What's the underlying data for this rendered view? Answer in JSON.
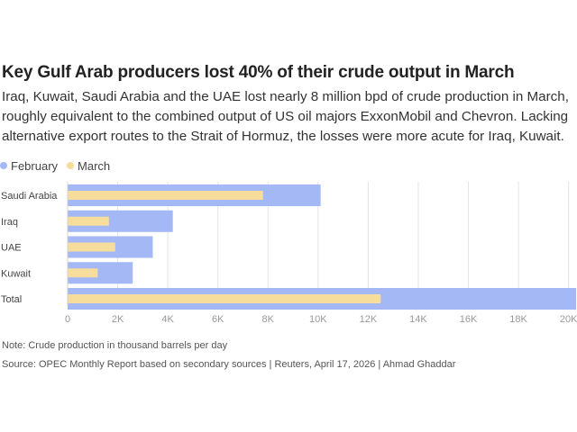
{
  "header": {
    "title": "Key Gulf Arab producers lost 40% of their crude output in March",
    "subtitle": "Iraq, Kuwait, Saudi Arabia and the UAE lost nearly 8 million bpd of crude production in March, roughly equivalent to the combined output of US oil majors ExxonMobil and Chevron. Lacking alternative export routes to the Strait of Hormuz, the losses were more acute for Iraq, Kuwait."
  },
  "legend": {
    "february": "February",
    "march": "March"
  },
  "colors": {
    "february": "#a3b8f5",
    "march": "#f7dd9b",
    "grid": "#e4e4e4",
    "axis_text": "#999999",
    "label_text": "#444444"
  },
  "footer": {
    "note": "Note: Crude production in thousand barrels per day",
    "source": "Source: OPEC Monthly Report based on secondary sources | Reuters, April 17, 2026 | Ahmad Ghaddar"
  },
  "chart_data": {
    "type": "bar",
    "orientation": "horizontal",
    "categories": [
      "Saudi Arabia",
      "Iraq",
      "UAE",
      "Kuwait",
      "Total"
    ],
    "series": [
      {
        "name": "February",
        "values": [
          10100,
          4200,
          3400,
          2600,
          20300
        ]
      },
      {
        "name": "March",
        "values": [
          7800,
          1650,
          1900,
          1200,
          12500
        ]
      }
    ],
    "xlim": [
      0,
      20300
    ],
    "xticks": [
      0,
      2000,
      4000,
      6000,
      8000,
      10000,
      12000,
      14000,
      16000,
      18000,
      20000
    ],
    "xtick_labels": [
      "0",
      "2K",
      "4K",
      "6K",
      "8K",
      "10K",
      "12K",
      "14K",
      "16K",
      "18K",
      "20K"
    ],
    "grid": true,
    "xlabel": "",
    "ylabel": ""
  }
}
